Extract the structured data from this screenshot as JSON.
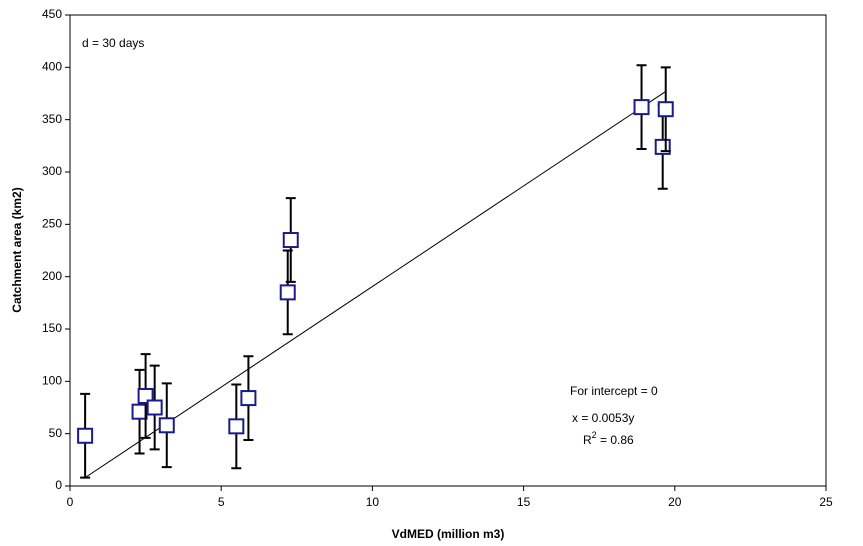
{
  "chart_data": {
    "type": "scatter",
    "x_label": "VdMED (million m3)",
    "y_label": "Catchment area (km2)",
    "x": [
      0.5,
      2.3,
      2.5,
      2.8,
      3.2,
      5.5,
      5.9,
      7.2,
      7.3,
      18.9,
      19.6,
      19.7
    ],
    "values": [
      48,
      71,
      86,
      75,
      58,
      57,
      84,
      185,
      235,
      362,
      324,
      360
    ],
    "errors": [
      40,
      40,
      40,
      40,
      40,
      40,
      40,
      40,
      40,
      40,
      40,
      40
    ],
    "color": "#1a1a8c",
    "error_color": "#000000",
    "trendline": {
      "x": [
        0.5,
        19.7
      ],
      "y": [
        8,
        377
      ]
    },
    "xlim": [
      0,
      25
    ],
    "xticks": [
      0,
      5,
      10,
      15,
      20,
      25
    ],
    "ylim": [
      0,
      450
    ],
    "yticks": [
      0,
      50,
      100,
      150,
      200,
      250,
      300,
      350,
      400,
      450
    ],
    "annotations": {
      "d": "d = 30 days",
      "intercept": "For intercept = 0",
      "equation": "x  = 0.0053y",
      "r2": {
        "base": "R",
        "sup": "2",
        "rest": " = 0.86"
      }
    }
  }
}
